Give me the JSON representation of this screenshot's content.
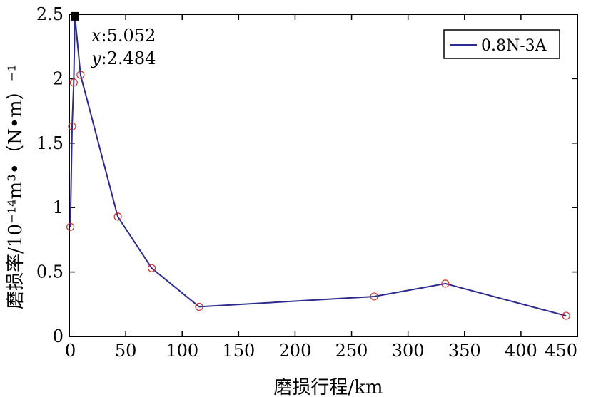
{
  "chart_data": {
    "type": "line",
    "xlabel": "磨损行程/km",
    "ylabel": "磨损率/10⁻¹⁴m³•（N•m）⁻¹",
    "xlim": [
      0,
      450
    ],
    "ylim": [
      0,
      2.5
    ],
    "xticks": [
      "0",
      "50",
      "100",
      "150",
      "200",
      "250",
      "300",
      "350",
      "400",
      "450"
    ],
    "yticks": [
      "0",
      "0.5",
      "1",
      "1.5",
      "2",
      "2.5"
    ],
    "grid": false,
    "legend_position": "top-right",
    "series": [
      {
        "name": "0.8N-3A",
        "color": "#2b2b8f",
        "marker_color": "#cc3333",
        "marker": "open-circle",
        "x": [
          1,
          2.5,
          4,
          5.052,
          10,
          43,
          73,
          115,
          270,
          333,
          440
        ],
        "y": [
          0.85,
          1.63,
          1.97,
          2.484,
          2.03,
          0.93,
          0.53,
          0.23,
          0.31,
          0.41,
          0.16
        ]
      }
    ],
    "annotation": {
      "x_label": "x",
      "x_value": "5.052",
      "y_label": "y",
      "y_value": "2.484"
    }
  }
}
